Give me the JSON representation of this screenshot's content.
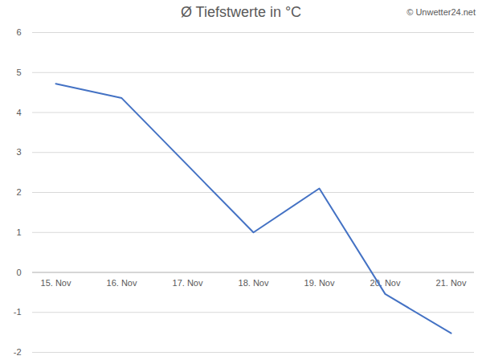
{
  "chart_data": {
    "type": "line",
    "title": "Ø Tiefstwerte in °C",
    "annotations": [
      "© Unwetter24.net"
    ],
    "categories": [
      "15. Nov",
      "16. Nov",
      "17. Nov",
      "18. Nov",
      "19. Nov",
      "20. Nov",
      "21. Nov"
    ],
    "values": [
      4.72,
      4.36,
      2.68,
      1.0,
      2.1,
      -0.54,
      -1.52
    ],
    "color": "#4472c4",
    "ylim": [
      -2,
      6
    ],
    "yticks": [
      -2,
      -1,
      0,
      1,
      2,
      3,
      4,
      5,
      6
    ],
    "grid": true
  }
}
